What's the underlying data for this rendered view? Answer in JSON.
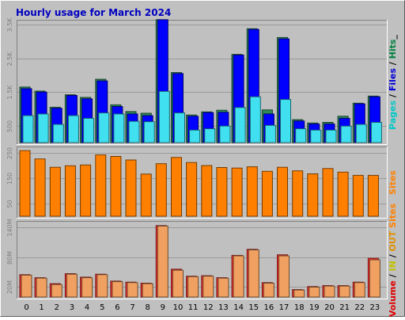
{
  "chart_data": {
    "title": "Hourly usage for March 2024",
    "type": "bar",
    "x": [
      "0",
      "1",
      "2",
      "3",
      "4",
      "5",
      "6",
      "7",
      "8",
      "9",
      "10",
      "11",
      "12",
      "13",
      "14",
      "15",
      "16",
      "17",
      "18",
      "19",
      "20",
      "21",
      "22",
      "23"
    ],
    "panels": [
      {
        "name": "top",
        "ylim": [
          0,
          3600
        ],
        "yticks": [
          {
            "value": 500,
            "label": "500"
          },
          {
            "value": 1500,
            "label": "1.5K"
          },
          {
            "value": 2500,
            "label": "2.5K"
          },
          {
            "value": 3500,
            "label": "3.5K"
          }
        ],
        "right_label": [
          {
            "text": "Pages",
            "color": "#00c8c8"
          },
          {
            "text": " / ",
            "color": "#000000"
          },
          {
            "text": "Files",
            "color": "#0000d8"
          },
          {
            "text": " / ",
            "color": "#000000"
          },
          {
            "text": "Hits",
            "color": "#008040"
          },
          {
            "text": "_",
            "color": "#000000"
          }
        ],
        "series": [
          {
            "name": "Hits",
            "color": "#2e8b57",
            "offset": 0,
            "values": [
              1650,
              1530,
              1050,
              1420,
              1340,
              1880,
              1120,
              920,
              870,
              3650,
              2080,
              820,
              910,
              960,
              2620,
              3380,
              970,
              3120,
              680,
              580,
              600,
              780,
              1170,
              1380
            ]
          },
          {
            "name": "Files",
            "color": "#0000ff",
            "offset": 1,
            "values": [
              1600,
              1500,
              1020,
              1400,
              1300,
              1830,
              1070,
              850,
              800,
              3650,
              2050,
              780,
              890,
              900,
              2600,
              3360,
              850,
              3080,
              640,
              550,
              550,
              720,
              1150,
              1360
            ]
          },
          {
            "name": "Pages",
            "color": "#40e0f0",
            "offset": 2,
            "values": [
              800,
              850,
              540,
              800,
              720,
              880,
              850,
              630,
              620,
              1520,
              880,
              370,
              410,
              490,
              1040,
              1360,
              510,
              1280,
              410,
              370,
              370,
              490,
              540,
              600
            ]
          }
        ]
      },
      {
        "name": "middle",
        "ylim": [
          0,
          270
        ],
        "yticks": [
          {
            "value": 50,
            "label": "50"
          },
          {
            "value": 150,
            "label": "150"
          },
          {
            "value": 250,
            "label": "250"
          }
        ],
        "right_label": [
          {
            "text": "Sites",
            "color": "#ff8000"
          }
        ],
        "series": [
          {
            "name": "Sites",
            "color": "#ff8000",
            "offset": 0,
            "values": [
              260,
              227,
              194,
              200,
              203,
              243,
              237,
              223,
              167,
              208,
              233,
              213,
              201,
              193,
              191,
              196,
              178,
              194,
              180,
              168,
              189,
              175,
              162,
              162
            ]
          }
        ]
      },
      {
        "name": "bottom",
        "ylim": [
          0,
          150
        ],
        "yticks": [
          {
            "value": 20,
            "label": "20M"
          },
          {
            "value": 80,
            "label": "80M"
          },
          {
            "value": 140,
            "label": "140M"
          }
        ],
        "right_label": [
          {
            "text": "Volume",
            "color": "#e00000"
          },
          {
            "text": " / ",
            "color": "#000000"
          },
          {
            "text": "IN",
            "color": "#c0c000"
          },
          {
            "text": " / ",
            "color": "#000000"
          },
          {
            "text": "OUT",
            "color": "#e09000"
          },
          {
            "text": " ",
            "color": "#000000"
          },
          {
            "text": "Sites",
            "color": "#ff8000"
          }
        ],
        "series": [
          {
            "name": "Volume",
            "color": "#ff3030",
            "offset": 0,
            "values": [
              45,
              39,
              27,
              47,
              40,
              46,
              32,
              30,
              28,
              144,
              56,
              42,
              43,
              39,
              84,
              96,
              29,
              85,
              15,
              21,
              23,
              23,
              30,
              78
            ]
          },
          {
            "name": "OUT",
            "color": "#f0a060",
            "offset": 1,
            "values": [
              44,
              38,
              25,
              46,
              39,
              45,
              31,
              29,
              27,
              143,
              54,
              41,
              42,
              38,
              83,
              95,
              28,
              83,
              14,
              20,
              22,
              22,
              29,
              75
            ]
          }
        ]
      }
    ]
  }
}
